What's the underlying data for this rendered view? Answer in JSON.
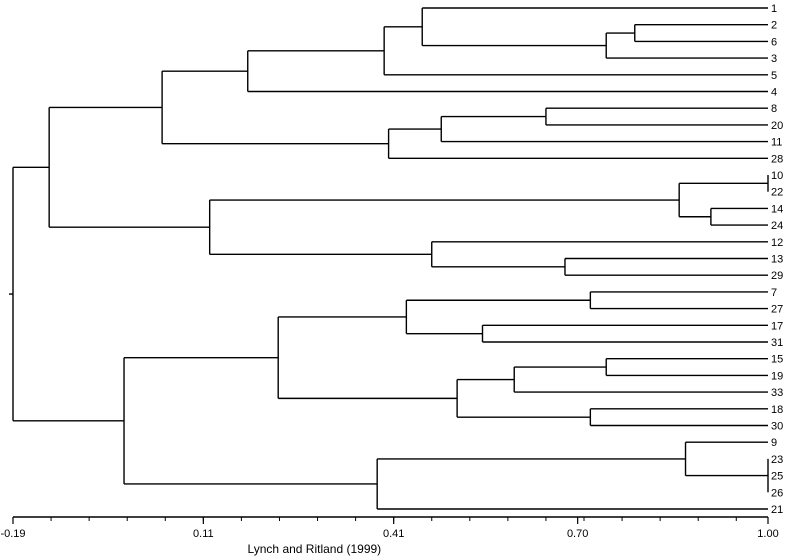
{
  "chart_data": {
    "type": "dendrogram",
    "xlabel": "Lynch and Ritland (1999)",
    "xlim": [
      -0.19,
      1.0
    ],
    "tick_labels": [
      "-0.19",
      "0.11",
      "0.41",
      "0.70",
      "1.00"
    ],
    "tick_values": [
      -0.19,
      0.11,
      0.41,
      0.7,
      1.0
    ],
    "minor_tick_step": 0.06,
    "leaf_order": [
      "1",
      "2",
      "6",
      "3",
      "5",
      "4",
      "8",
      "20",
      "11",
      "28",
      "10",
      "22",
      "14",
      "24",
      "12",
      "13",
      "29",
      "7",
      "27",
      "17",
      "31",
      "15",
      "19",
      "33",
      "18",
      "30",
      "9",
      "23",
      "25",
      "26",
      "21"
    ],
    "tree": {
      "h": -0.19,
      "children": [
        {
          "h": -0.133,
          "children": [
            {
              "h": 0.045,
              "children": [
                {
                  "h": 0.18,
                  "children": [
                    {
                      "h": 0.395,
                      "children": [
                        {
                          "h": 0.455,
                          "children": [
                            {
                              "leaf": "1"
                            },
                            {
                              "h": 0.745,
                              "children": [
                                {
                                  "h": 0.79,
                                  "children": [
                                    {
                                      "leaf": "2"
                                    },
                                    {
                                      "leaf": "6"
                                    }
                                  ]
                                },
                                {
                                  "leaf": "3"
                                }
                              ]
                            }
                          ]
                        },
                        {
                          "leaf": "5"
                        }
                      ]
                    },
                    {
                      "leaf": "4"
                    }
                  ]
                },
                {
                  "h": 0.402,
                  "children": [
                    {
                      "h": 0.485,
                      "children": [
                        {
                          "h": 0.65,
                          "children": [
                            {
                              "leaf": "8"
                            },
                            {
                              "leaf": "20"
                            }
                          ]
                        },
                        {
                          "leaf": "11"
                        }
                      ]
                    },
                    {
                      "leaf": "28"
                    }
                  ]
                }
              ]
            },
            {
              "h": 0.12,
              "children": [
                {
                  "h": 0.86,
                  "children": [
                    {
                      "h": 1.0,
                      "children": [
                        {
                          "leaf": "10"
                        },
                        {
                          "leaf": "22"
                        }
                      ]
                    },
                    {
                      "h": 0.91,
                      "children": [
                        {
                          "leaf": "14"
                        },
                        {
                          "leaf": "24"
                        }
                      ]
                    }
                  ]
                },
                {
                  "h": 0.47,
                  "children": [
                    {
                      "leaf": "12"
                    },
                    {
                      "h": 0.68,
                      "children": [
                        {
                          "leaf": "13"
                        },
                        {
                          "leaf": "29"
                        }
                      ]
                    }
                  ]
                }
              ]
            }
          ]
        },
        {
          "h": -0.015,
          "children": [
            {
              "h": 0.228,
              "children": [
                {
                  "h": 0.43,
                  "children": [
                    {
                      "h": 0.72,
                      "children": [
                        {
                          "leaf": "7"
                        },
                        {
                          "leaf": "27"
                        }
                      ]
                    },
                    {
                      "h": 0.55,
                      "children": [
                        {
                          "leaf": "17"
                        },
                        {
                          "leaf": "31"
                        }
                      ]
                    }
                  ]
                },
                {
                  "h": 0.51,
                  "children": [
                    {
                      "h": 0.6,
                      "children": [
                        {
                          "h": 0.745,
                          "children": [
                            {
                              "leaf": "15"
                            },
                            {
                              "leaf": "19"
                            }
                          ]
                        },
                        {
                          "leaf": "33"
                        }
                      ]
                    },
                    {
                      "h": 0.72,
                      "children": [
                        {
                          "leaf": "18"
                        },
                        {
                          "leaf": "30"
                        }
                      ]
                    }
                  ]
                }
              ]
            },
            {
              "h": 0.384,
              "children": [
                {
                  "h": 0.87,
                  "children": [
                    {
                      "leaf": "9"
                    },
                    {
                      "h": 1.0,
                      "children": [
                        {
                          "leaf": "23"
                        },
                        {
                          "leaf": "25"
                        },
                        {
                          "leaf": "26"
                        }
                      ]
                    }
                  ]
                },
                {
                  "leaf": "21"
                }
              ]
            }
          ]
        }
      ]
    }
  }
}
